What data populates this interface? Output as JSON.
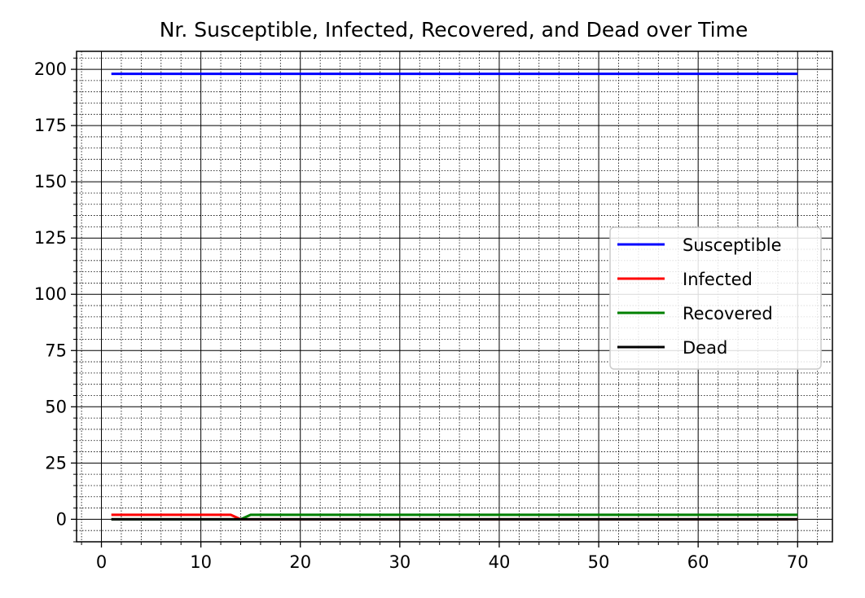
{
  "chart_data": {
    "type": "line",
    "title": "Nr. Susceptible, Infected, Recovered, and Dead over Time",
    "xlabel": "",
    "ylabel": "",
    "xlim": [
      -2.5,
      73.5
    ],
    "ylim": [
      -10,
      208
    ],
    "xticks": [
      0,
      10,
      20,
      30,
      40,
      50,
      60,
      70
    ],
    "yticks": [
      0,
      25,
      50,
      75,
      100,
      125,
      150,
      175,
      200
    ],
    "x_minor_step": 2,
    "y_minor_step": 5,
    "grid": true,
    "minor_grid": true,
    "legend_position": "center-right",
    "series": [
      {
        "name": "Susceptible",
        "color": "#0000ff",
        "points": [
          [
            1,
            198
          ],
          [
            70,
            198
          ]
        ]
      },
      {
        "name": "Infected",
        "color": "#ff0000",
        "points": [
          [
            1,
            2
          ],
          [
            13,
            2
          ],
          [
            14,
            0
          ],
          [
            15,
            0
          ],
          [
            70,
            0
          ]
        ]
      },
      {
        "name": "Recovered",
        "color": "#008000",
        "points": [
          [
            1,
            0
          ],
          [
            14,
            0
          ],
          [
            15,
            2
          ],
          [
            70,
            2
          ]
        ]
      },
      {
        "name": "Dead",
        "color": "#000000",
        "points": [
          [
            1,
            0
          ],
          [
            70,
            0
          ]
        ]
      }
    ]
  }
}
